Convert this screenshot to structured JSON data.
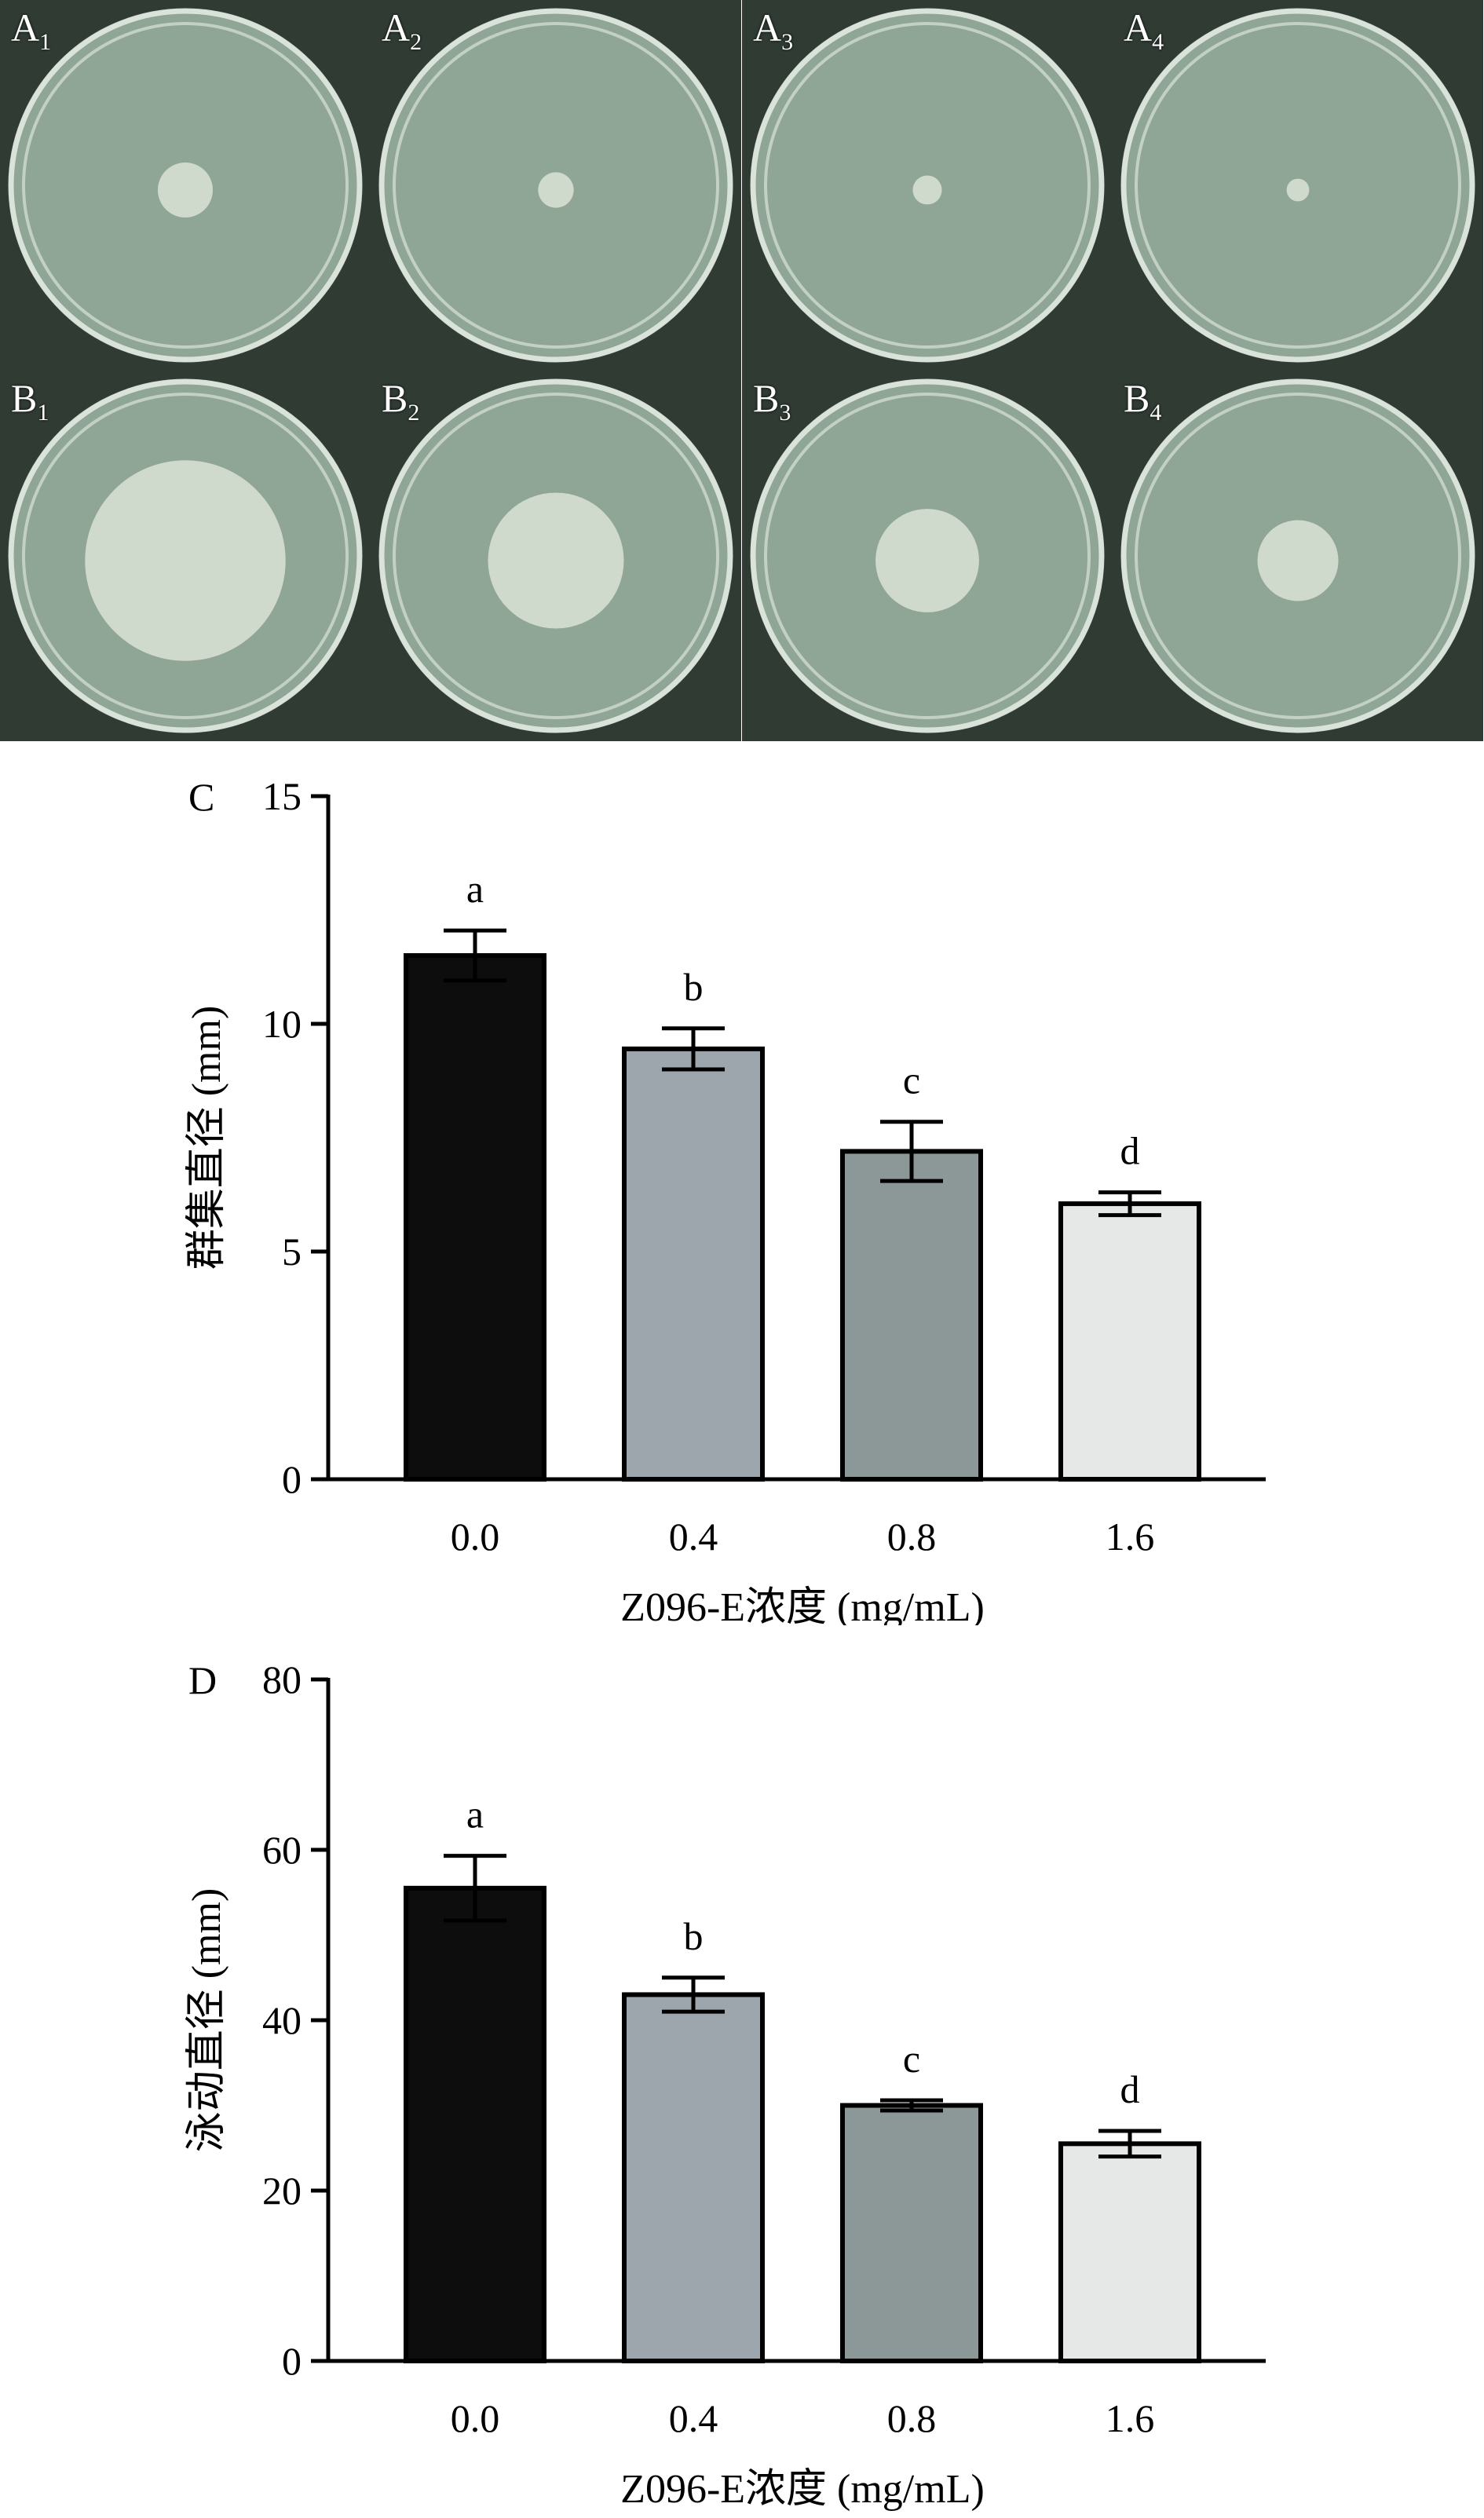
{
  "photo_panels": {
    "row_a": [
      {
        "letter": "A",
        "sub": "1",
        "colony": 0.17
      },
      {
        "letter": "A",
        "sub": "2",
        "colony": 0.11
      },
      {
        "letter": "A",
        "sub": "3",
        "colony": 0.09
      },
      {
        "letter": "A",
        "sub": "4",
        "colony": 0.07
      }
    ],
    "row_b": [
      {
        "letter": "B",
        "sub": "1",
        "colony": 0.62
      },
      {
        "letter": "B",
        "sub": "2",
        "colony": 0.42
      },
      {
        "letter": "B",
        "sub": "3",
        "colony": 0.32
      },
      {
        "letter": "B",
        "sub": "4",
        "colony": 0.25
      }
    ],
    "colors": {
      "background": "#2f3b33",
      "dish": "#8fa596",
      "rim": "#e6ede6",
      "colony": "#d3dccf"
    }
  },
  "chart_data": [
    {
      "type": "bar",
      "panel_label": "C",
      "categories": [
        "0.0",
        "0.4",
        "0.8",
        "1.6"
      ],
      "values": [
        11.5,
        9.45,
        7.2,
        6.05
      ],
      "errors": [
        0.55,
        0.45,
        0.65,
        0.25
      ],
      "significance": [
        "a",
        "b",
        "c",
        "d"
      ],
      "colors": [
        "#0d0d0d",
        "#9ea6ad",
        "#8c9797",
        "#e6e8e8"
      ],
      "ylabel": "群集直径 (mm)",
      "xlabel": "Z096-E浓度 (mg/mL)",
      "ylim": [
        0,
        15
      ],
      "yticks": [
        "0",
        "5",
        "10",
        "15"
      ],
      "ytick_values": [
        0,
        5,
        10,
        15
      ],
      "grid": false
    },
    {
      "type": "bar",
      "panel_label": "D",
      "categories": [
        "0.0",
        "0.4",
        "0.8",
        "1.6"
      ],
      "values": [
        55.5,
        43.0,
        30.0,
        25.5
      ],
      "errors": [
        3.8,
        2.0,
        0.6,
        1.5
      ],
      "significance": [
        "a",
        "b",
        "c",
        "d"
      ],
      "colors": [
        "#0d0d0d",
        "#9ea6ad",
        "#8c9797",
        "#e6e8e8"
      ],
      "ylabel": "泳动直径 (mm)",
      "xlabel": "Z096-E浓度 (mg/mL)",
      "ylim": [
        0,
        80
      ],
      "yticks": [
        "0",
        "20",
        "40",
        "60",
        "80"
      ],
      "ytick_values": [
        0,
        20,
        40,
        60,
        80
      ],
      "grid": false
    }
  ]
}
